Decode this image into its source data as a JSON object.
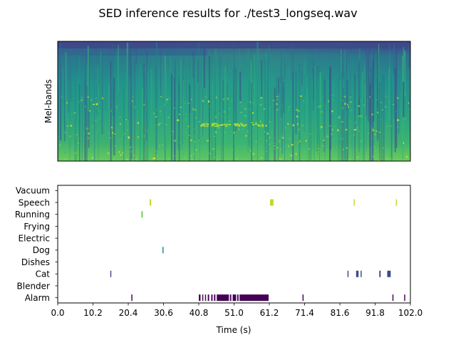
{
  "title": "SED inference results for ./test3_longseq.wav",
  "chart_data": [
    {
      "type": "heatmap",
      "ylabel": "Mel-bands",
      "xticks": "none",
      "yticks": "none",
      "colormap": "viridis",
      "time_range_s": [
        0,
        102.0
      ]
    },
    {
      "type": "bar",
      "subtype": "event-raster",
      "xlabel": "Time (s)",
      "xlim": [
        0.0,
        102.0
      ],
      "xticks": [
        "0.0",
        "10.2",
        "20.4",
        "30.6",
        "40.8",
        "51.0",
        "61.2",
        "71.4",
        "81.6",
        "91.8",
        "102.0"
      ],
      "categories": [
        "Vacuum",
        "Speech",
        "Running",
        "Frying",
        "Electric",
        "Dog",
        "Dishes",
        "Cat",
        "Blender",
        "Alarm"
      ],
      "colors": {
        "Vacuum": "#fde725",
        "Speech": "#b5de2b",
        "Running": "#6ece58",
        "Frying": "#35b779",
        "Electric": "#1f9e89",
        "Dog": "#26828e",
        "Dishes": "#31688e",
        "Cat": "#3e4989",
        "Blender": "#482878",
        "Alarm": "#440154"
      },
      "events": {
        "Vacuum": [],
        "Speech": [
          [
            26.6,
            27.0
          ],
          [
            61.4,
            62.4
          ],
          [
            85.6,
            85.9
          ],
          [
            97.8,
            98.1
          ]
        ],
        "Running": [
          [
            24.2,
            24.6
          ]
        ],
        "Frying": [],
        "Electric": [],
        "Dog": [
          [
            30.3,
            30.6
          ]
        ],
        "Dishes": [],
        "Cat": [
          [
            15.2,
            15.5
          ],
          [
            83.8,
            84.1
          ],
          [
            86.3,
            87.0
          ],
          [
            87.6,
            87.9
          ],
          [
            93.0,
            93.4
          ],
          [
            95.3,
            96.3
          ]
        ],
        "Blender": [],
        "Alarm": [
          [
            21.3,
            21.6
          ],
          [
            40.8,
            41.3
          ],
          [
            41.8,
            42.1
          ],
          [
            42.6,
            42.9
          ],
          [
            43.4,
            43.8
          ],
          [
            44.4,
            44.8
          ],
          [
            45.2,
            45.6
          ],
          [
            46.0,
            49.5
          ],
          [
            49.8,
            50.2
          ],
          [
            50.6,
            51.6
          ],
          [
            51.9,
            52.3
          ],
          [
            52.6,
            61.0
          ],
          [
            70.8,
            71.1
          ],
          [
            96.8,
            97.1
          ],
          [
            100.2,
            100.5
          ]
        ]
      }
    }
  ]
}
